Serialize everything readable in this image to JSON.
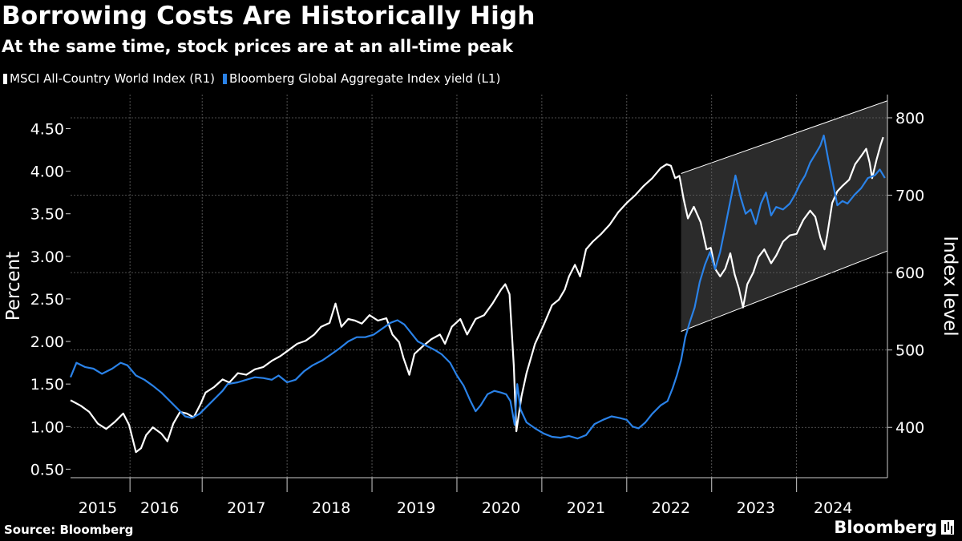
{
  "header": {
    "title": "Borrowing Costs Are Historically High",
    "subtitle": "At the same time, stock prices are at an all-time peak"
  },
  "legend": [
    {
      "label": "MSCI All-Country World Index (R1)",
      "color": "#ffffff"
    },
    {
      "label": "Bloomberg Global Aggregate Index yield (L1)",
      "color": "#2a82e8"
    }
  ],
  "footer": {
    "source": "Source: Bloomberg",
    "brand": "Bloomberg"
  },
  "chart_data": {
    "type": "line",
    "title": "Borrowing Costs Are Historically High",
    "subtitle": "At the same time, stock prices are at an all-time peak",
    "x_range": [
      2014.93,
      2024.55
    ],
    "x_ticks": [
      {
        "label": "2015",
        "center": 2015.25
      },
      {
        "label": "2016",
        "center": 2015.98
      },
      {
        "label": "2017",
        "center": 2017.0
      },
      {
        "label": "2018",
        "center": 2018.0
      },
      {
        "label": "2019",
        "center": 2019.0
      },
      {
        "label": "2020",
        "center": 2020.0
      },
      {
        "label": "2021",
        "center": 2021.0
      },
      {
        "label": "2022",
        "center": 2022.0
      },
      {
        "label": "2023",
        "center": 2023.0
      },
      {
        "label": "2024",
        "center": 2023.91
      }
    ],
    "x_dividers": [
      2015.63,
      2016.48,
      2017.48,
      2018.48,
      2019.48,
      2020.48,
      2021.48,
      2022.48,
      2023.48
    ],
    "y_left": {
      "label": "Percent",
      "range": [
        0.4,
        4.9
      ],
      "ticks": [
        "0.50",
        "1.00",
        "1.50",
        "2.00",
        "2.50",
        "3.00",
        "3.50",
        "4.00",
        "4.50"
      ]
    },
    "y_right": {
      "label": "Index level",
      "range": [
        335,
        830
      ],
      "ticks": [
        "400",
        "500",
        "600",
        "700",
        "800"
      ]
    },
    "grid": true,
    "series": [
      {
        "name": "MSCI All-Country World Index (R1)",
        "axis": "right",
        "color": "#ffffff",
        "points": [
          [
            2014.93,
            435
          ],
          [
            2015.05,
            428
          ],
          [
            2015.15,
            420
          ],
          [
            2015.25,
            405
          ],
          [
            2015.35,
            398
          ],
          [
            2015.45,
            407
          ],
          [
            2015.55,
            418
          ],
          [
            2015.62,
            403
          ],
          [
            2015.7,
            368
          ],
          [
            2015.76,
            373
          ],
          [
            2015.82,
            390
          ],
          [
            2015.9,
            400
          ],
          [
            2016.0,
            392
          ],
          [
            2016.07,
            382
          ],
          [
            2016.14,
            405
          ],
          [
            2016.22,
            420
          ],
          [
            2016.3,
            418
          ],
          [
            2016.38,
            413
          ],
          [
            2016.46,
            430
          ],
          [
            2016.52,
            445
          ],
          [
            2016.62,
            452
          ],
          [
            2016.72,
            462
          ],
          [
            2016.8,
            458
          ],
          [
            2016.9,
            470
          ],
          [
            2017.0,
            468
          ],
          [
            2017.1,
            475
          ],
          [
            2017.2,
            478
          ],
          [
            2017.3,
            486
          ],
          [
            2017.4,
            492
          ],
          [
            2017.5,
            500
          ],
          [
            2017.6,
            508
          ],
          [
            2017.7,
            512
          ],
          [
            2017.8,
            520
          ],
          [
            2017.88,
            530
          ],
          [
            2017.98,
            535
          ],
          [
            2018.05,
            560
          ],
          [
            2018.12,
            530
          ],
          [
            2018.2,
            540
          ],
          [
            2018.28,
            538
          ],
          [
            2018.36,
            534
          ],
          [
            2018.45,
            545
          ],
          [
            2018.55,
            538
          ],
          [
            2018.65,
            541
          ],
          [
            2018.72,
            520
          ],
          [
            2018.8,
            510
          ],
          [
            2018.85,
            490
          ],
          [
            2018.92,
            468
          ],
          [
            2018.98,
            495
          ],
          [
            2019.08,
            505
          ],
          [
            2019.18,
            514
          ],
          [
            2019.28,
            520
          ],
          [
            2019.34,
            508
          ],
          [
            2019.42,
            530
          ],
          [
            2019.52,
            540
          ],
          [
            2019.6,
            520
          ],
          [
            2019.7,
            540
          ],
          [
            2019.8,
            545
          ],
          [
            2019.9,
            560
          ],
          [
            2020.0,
            578
          ],
          [
            2020.05,
            585
          ],
          [
            2020.1,
            572
          ],
          [
            2020.15,
            480
          ],
          [
            2020.18,
            395
          ],
          [
            2020.24,
            440
          ],
          [
            2020.3,
            470
          ],
          [
            2020.4,
            508
          ],
          [
            2020.5,
            532
          ],
          [
            2020.6,
            558
          ],
          [
            2020.68,
            565
          ],
          [
            2020.75,
            578
          ],
          [
            2020.8,
            595
          ],
          [
            2020.87,
            610
          ],
          [
            2020.93,
            595
          ],
          [
            2021.0,
            630
          ],
          [
            2021.08,
            640
          ],
          [
            2021.18,
            650
          ],
          [
            2021.28,
            662
          ],
          [
            2021.38,
            678
          ],
          [
            2021.48,
            690
          ],
          [
            2021.58,
            700
          ],
          [
            2021.68,
            712
          ],
          [
            2021.78,
            722
          ],
          [
            2021.88,
            735
          ],
          [
            2021.95,
            740
          ],
          [
            2022.0,
            738
          ],
          [
            2022.05,
            722
          ],
          [
            2022.1,
            725
          ],
          [
            2022.15,
            695
          ],
          [
            2022.2,
            670
          ],
          [
            2022.27,
            685
          ],
          [
            2022.35,
            665
          ],
          [
            2022.42,
            630
          ],
          [
            2022.47,
            632
          ],
          [
            2022.52,
            605
          ],
          [
            2022.58,
            595
          ],
          [
            2022.64,
            605
          ],
          [
            2022.7,
            625
          ],
          [
            2022.75,
            598
          ],
          [
            2022.8,
            580
          ],
          [
            2022.85,
            555
          ],
          [
            2022.9,
            585
          ],
          [
            2022.97,
            600
          ],
          [
            2023.03,
            620
          ],
          [
            2023.1,
            630
          ],
          [
            2023.18,
            612
          ],
          [
            2023.24,
            622
          ],
          [
            2023.32,
            640
          ],
          [
            2023.4,
            648
          ],
          [
            2023.48,
            650
          ],
          [
            2023.56,
            668
          ],
          [
            2023.64,
            680
          ],
          [
            2023.7,
            672
          ],
          [
            2023.76,
            645
          ],
          [
            2023.81,
            630
          ],
          [
            2023.84,
            648
          ],
          [
            2023.9,
            690
          ],
          [
            2023.96,
            705
          ],
          [
            2024.02,
            712
          ],
          [
            2024.1,
            720
          ],
          [
            2024.17,
            740
          ],
          [
            2024.25,
            752
          ],
          [
            2024.3,
            760
          ],
          [
            2024.34,
            742
          ],
          [
            2024.37,
            722
          ],
          [
            2024.42,
            745
          ],
          [
            2024.47,
            765
          ],
          [
            2024.5,
            775
          ]
        ]
      },
      {
        "name": "Bloomberg Global Aggregate Index yield (L1)",
        "axis": "left",
        "color": "#2a82e8",
        "points": [
          [
            2014.93,
            1.58
          ],
          [
            2015.0,
            1.75
          ],
          [
            2015.1,
            1.7
          ],
          [
            2015.2,
            1.68
          ],
          [
            2015.3,
            1.62
          ],
          [
            2015.42,
            1.68
          ],
          [
            2015.52,
            1.75
          ],
          [
            2015.6,
            1.72
          ],
          [
            2015.7,
            1.6
          ],
          [
            2015.8,
            1.55
          ],
          [
            2015.9,
            1.48
          ],
          [
            2016.0,
            1.4
          ],
          [
            2016.1,
            1.3
          ],
          [
            2016.2,
            1.2
          ],
          [
            2016.28,
            1.12
          ],
          [
            2016.36,
            1.1
          ],
          [
            2016.45,
            1.15
          ],
          [
            2016.55,
            1.25
          ],
          [
            2016.65,
            1.35
          ],
          [
            2016.72,
            1.42
          ],
          [
            2016.78,
            1.5
          ],
          [
            2016.9,
            1.52
          ],
          [
            2017.0,
            1.55
          ],
          [
            2017.1,
            1.58
          ],
          [
            2017.2,
            1.57
          ],
          [
            2017.3,
            1.55
          ],
          [
            2017.38,
            1.6
          ],
          [
            2017.48,
            1.52
          ],
          [
            2017.58,
            1.55
          ],
          [
            2017.68,
            1.65
          ],
          [
            2017.78,
            1.72
          ],
          [
            2017.9,
            1.78
          ],
          [
            2018.0,
            1.85
          ],
          [
            2018.1,
            1.92
          ],
          [
            2018.2,
            2.0
          ],
          [
            2018.3,
            2.05
          ],
          [
            2018.4,
            2.05
          ],
          [
            2018.5,
            2.08
          ],
          [
            2018.6,
            2.15
          ],
          [
            2018.7,
            2.22
          ],
          [
            2018.78,
            2.25
          ],
          [
            2018.86,
            2.2
          ],
          [
            2018.94,
            2.1
          ],
          [
            2019.02,
            2.0
          ],
          [
            2019.12,
            1.95
          ],
          [
            2019.22,
            1.9
          ],
          [
            2019.3,
            1.85
          ],
          [
            2019.4,
            1.75
          ],
          [
            2019.48,
            1.6
          ],
          [
            2019.56,
            1.48
          ],
          [
            2019.64,
            1.3
          ],
          [
            2019.7,
            1.18
          ],
          [
            2019.76,
            1.25
          ],
          [
            2019.84,
            1.38
          ],
          [
            2019.92,
            1.42
          ],
          [
            2020.0,
            1.4
          ],
          [
            2020.06,
            1.38
          ],
          [
            2020.11,
            1.3
          ],
          [
            2020.16,
            1.02
          ],
          [
            2020.19,
            1.5
          ],
          [
            2020.23,
            1.2
          ],
          [
            2020.3,
            1.05
          ],
          [
            2020.4,
            0.98
          ],
          [
            2020.5,
            0.92
          ],
          [
            2020.6,
            0.88
          ],
          [
            2020.7,
            0.87
          ],
          [
            2020.8,
            0.89
          ],
          [
            2020.9,
            0.86
          ],
          [
            2021.0,
            0.9
          ],
          [
            2021.1,
            1.03
          ],
          [
            2021.2,
            1.08
          ],
          [
            2021.3,
            1.12
          ],
          [
            2021.4,
            1.1
          ],
          [
            2021.48,
            1.08
          ],
          [
            2021.55,
            1.0
          ],
          [
            2021.62,
            0.98
          ],
          [
            2021.7,
            1.05
          ],
          [
            2021.78,
            1.15
          ],
          [
            2021.88,
            1.25
          ],
          [
            2021.96,
            1.3
          ],
          [
            2022.02,
            1.45
          ],
          [
            2022.07,
            1.6
          ],
          [
            2022.12,
            1.78
          ],
          [
            2022.17,
            2.05
          ],
          [
            2022.22,
            2.22
          ],
          [
            2022.28,
            2.4
          ],
          [
            2022.34,
            2.7
          ],
          [
            2022.4,
            2.9
          ],
          [
            2022.46,
            3.05
          ],
          [
            2022.52,
            2.85
          ],
          [
            2022.58,
            3.05
          ],
          [
            2022.64,
            3.35
          ],
          [
            2022.7,
            3.65
          ],
          [
            2022.76,
            3.95
          ],
          [
            2022.82,
            3.7
          ],
          [
            2022.88,
            3.5
          ],
          [
            2022.94,
            3.55
          ],
          [
            2023.0,
            3.38
          ],
          [
            2023.06,
            3.62
          ],
          [
            2023.12,
            3.75
          ],
          [
            2023.18,
            3.48
          ],
          [
            2023.24,
            3.58
          ],
          [
            2023.32,
            3.55
          ],
          [
            2023.4,
            3.62
          ],
          [
            2023.46,
            3.72
          ],
          [
            2023.52,
            3.85
          ],
          [
            2023.58,
            3.95
          ],
          [
            2023.64,
            4.1
          ],
          [
            2023.7,
            4.2
          ],
          [
            2023.76,
            4.3
          ],
          [
            2023.8,
            4.42
          ],
          [
            2023.85,
            4.15
          ],
          [
            2023.9,
            3.9
          ],
          [
            2023.96,
            3.6
          ],
          [
            2024.02,
            3.65
          ],
          [
            2024.08,
            3.62
          ],
          [
            2024.16,
            3.72
          ],
          [
            2024.24,
            3.8
          ],
          [
            2024.32,
            3.92
          ],
          [
            2024.4,
            3.95
          ],
          [
            2024.46,
            4.02
          ],
          [
            2024.52,
            3.92
          ]
        ]
      }
    ],
    "annotations": [
      {
        "type": "shaded-channel",
        "x_range": [
          2022.12,
          2024.55
        ],
        "right_axis_top": [
          728,
          822
        ],
        "right_axis_bottom": [
          524,
          628
        ]
      }
    ]
  }
}
